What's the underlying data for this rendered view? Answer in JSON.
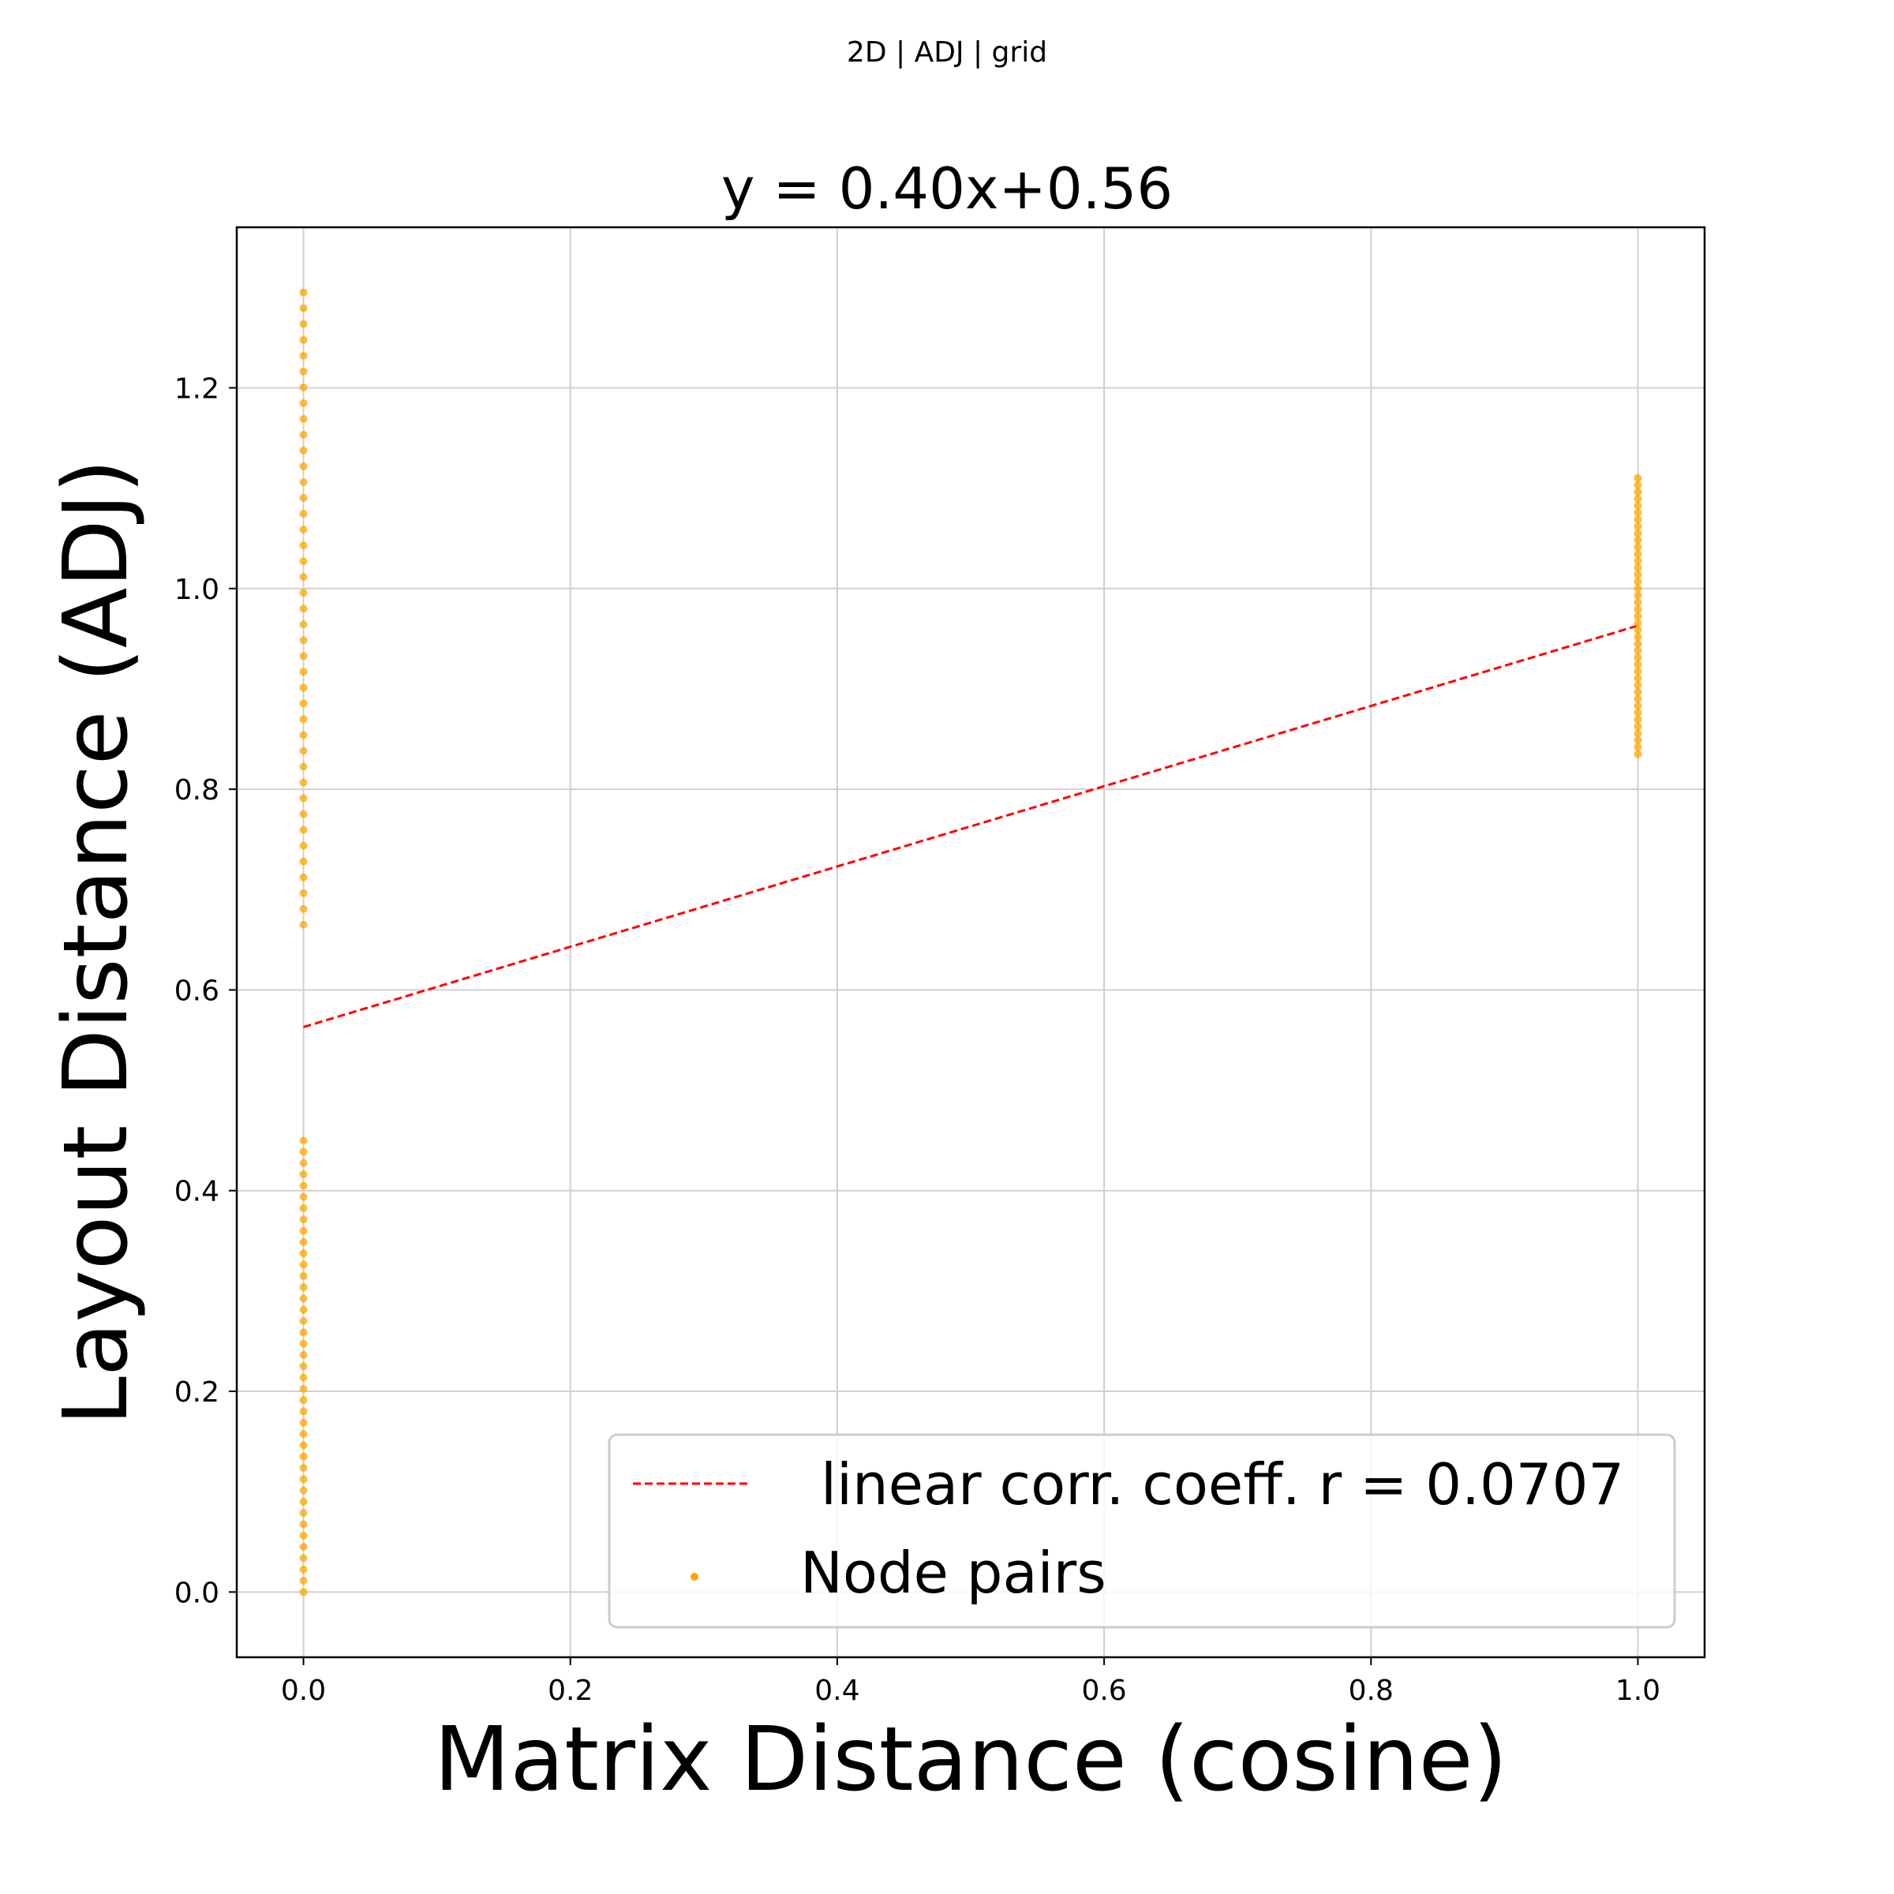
{
  "suptitle": "2D | ADJ | grid",
  "chart_data": {
    "type": "scatter",
    "title": "y = 0.40x+0.56",
    "xlabel": "Matrix Distance (cosine)",
    "ylabel": "Layout Distance (ADJ)",
    "xlim": [
      -0.05,
      1.05
    ],
    "ylim": [
      -0.065,
      1.36
    ],
    "xticks": [
      0.0,
      0.2,
      0.4,
      0.6,
      0.8,
      1.0
    ],
    "xtick_labels": [
      "0.0",
      "0.2",
      "0.4",
      "0.6",
      "0.8",
      "1.0"
    ],
    "yticks": [
      0.0,
      0.2,
      0.4,
      0.6,
      0.8,
      1.0,
      1.2
    ],
    "ytick_labels": [
      "0.0",
      "0.2",
      "0.4",
      "0.6",
      "0.8",
      "1.0",
      "1.2"
    ],
    "grid": true,
    "legend_position": "lower-right",
    "fit_line": {
      "name": "linear corr. coeff. r = 0.0707",
      "slope": 0.4,
      "intercept": 0.563,
      "x_range": [
        0.0,
        1.0
      ],
      "color": "#ff0000",
      "style": "dashed"
    },
    "series": [
      {
        "name": "Node pairs",
        "color": "#ffa500",
        "point_groups": [
          {
            "x": 0.0,
            "y_min": 0.0,
            "y_max": 0.45
          },
          {
            "x": 0.0,
            "y_min": 0.665,
            "y_max": 1.295
          },
          {
            "x": 1.0,
            "y_min": 0.835,
            "y_max": 1.11
          }
        ]
      }
    ]
  }
}
